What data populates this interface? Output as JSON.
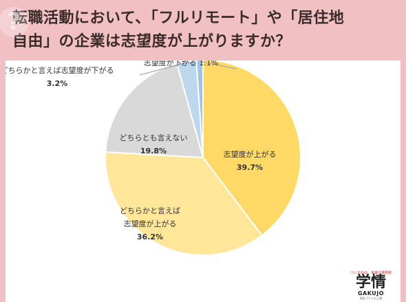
{
  "title": {
    "line1": "転職活動において、「フルリモート」や「居住地",
    "line2": "自由」の企業は志望度が上がりますか？"
  },
  "chart_data": {
    "type": "pie",
    "slices": [
      {
        "label": "志望度が上がる",
        "value": 39.7,
        "display": "39.7%",
        "color": "#ffd966"
      },
      {
        "label": "どちらかと言えば\n志望度が上がる",
        "value": 36.2,
        "display": "36.2%",
        "color": "#ffe699"
      },
      {
        "label": "どちらとも言えない",
        "value": 19.8,
        "display": "19.8%",
        "color": "#d9d9d9"
      },
      {
        "label": "どちらかと言えば志望度が下がる",
        "value": 3.2,
        "display": "3.2%",
        "color": "#bdd7ee"
      },
      {
        "label": "志望度が下がる",
        "value": 1.1,
        "display": "1.1%",
        "color": "#9dc3e6"
      }
    ]
  },
  "logo": {
    "tagline": "つくるのは、未来の選択肢",
    "main": "学情",
    "sub": "GAKUJO",
    "sub2": "東証プライム上場"
  }
}
